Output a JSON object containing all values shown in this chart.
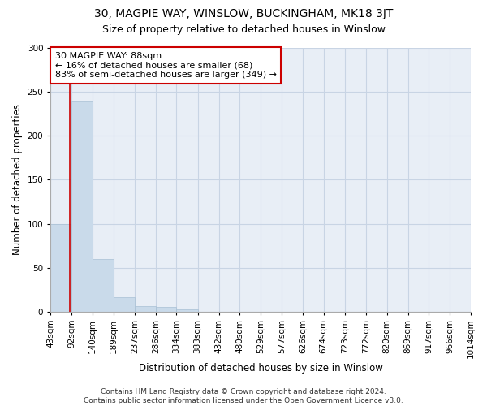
{
  "title1": "30, MAGPIE WAY, WINSLOW, BUCKINGHAM, MK18 3JT",
  "title2": "Size of property relative to detached houses in Winslow",
  "xlabel": "Distribution of detached houses by size in Winslow",
  "ylabel": "Number of detached properties",
  "bar_values": [
    100,
    240,
    60,
    16,
    6,
    5,
    3,
    0,
    0,
    0,
    0,
    0,
    0,
    0,
    0,
    0,
    0,
    0,
    0,
    0
  ],
  "bin_edges": [
    43,
    92,
    140,
    189,
    237,
    286,
    334,
    383,
    432,
    480,
    529,
    577,
    626,
    674,
    723,
    772,
    820,
    869,
    917,
    966,
    1014
  ],
  "tick_labels": [
    "43sqm",
    "92sqm",
    "140sqm",
    "189sqm",
    "237sqm",
    "286sqm",
    "334sqm",
    "383sqm",
    "432sqm",
    "480sqm",
    "529sqm",
    "577sqm",
    "626sqm",
    "674sqm",
    "723sqm",
    "772sqm",
    "820sqm",
    "869sqm",
    "917sqm",
    "966sqm",
    "1014sqm"
  ],
  "bar_color": "#c9daea",
  "bar_edge_color": "#a8c0d4",
  "grid_color": "#c8d4e4",
  "bg_color": "#e8eef6",
  "property_line_x": 88,
  "property_line_color": "#cc0000",
  "annotation_text": "30 MAGPIE WAY: 88sqm\n← 16% of detached houses are smaller (68)\n83% of semi-detached houses are larger (349) →",
  "annotation_box_color": "#ffffff",
  "annotation_box_edge": "#cc0000",
  "ylim": [
    0,
    300
  ],
  "yticks": [
    0,
    50,
    100,
    150,
    200,
    250,
    300
  ],
  "footer_text": "Contains HM Land Registry data © Crown copyright and database right 2024.\nContains public sector information licensed under the Open Government Licence v3.0.",
  "title1_fontsize": 10,
  "title2_fontsize": 9,
  "xlabel_fontsize": 8.5,
  "ylabel_fontsize": 8.5,
  "tick_fontsize": 7.5,
  "annotation_fontsize": 8,
  "footer_fontsize": 6.5
}
